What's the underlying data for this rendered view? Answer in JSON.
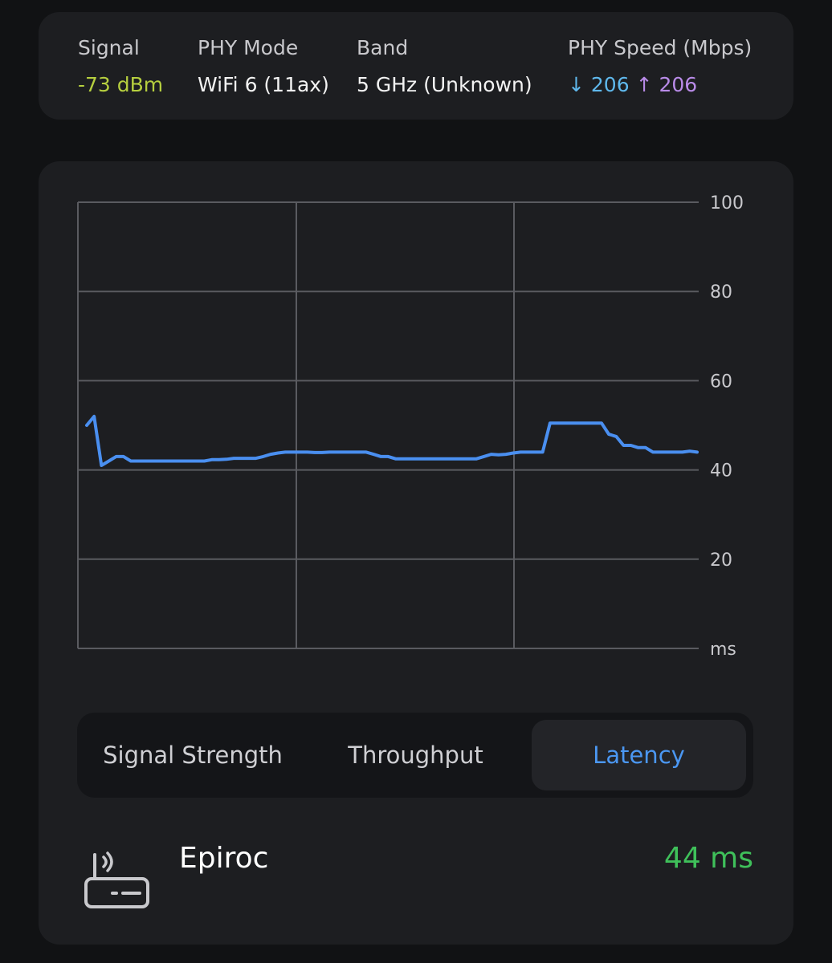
{
  "info": {
    "signal": {
      "label": "Signal",
      "value": "-73 dBm",
      "color": "#b6cf3f"
    },
    "phy_mode": {
      "label": "PHY Mode",
      "value": "WiFi 6 (11ax)"
    },
    "band": {
      "label": "Band",
      "value": "5 GHz (Unknown)"
    },
    "phy_speed": {
      "label": "PHY Speed (Mbps)",
      "down_arrow": "↓",
      "down": "206",
      "up_arrow": "↑",
      "up": "206"
    }
  },
  "chart_data": {
    "type": "line",
    "xlabel": "",
    "ylabel": "ms",
    "ylim": [
      0,
      100
    ],
    "yticks": [
      "ms",
      "20",
      "40",
      "60",
      "80",
      "100"
    ],
    "grid": true,
    "line_color": "#4a8ff0",
    "series": [
      {
        "values": [
          50,
          52,
          41,
          42,
          43,
          43,
          42,
          42,
          42,
          42,
          42,
          42,
          42,
          42,
          42,
          42,
          42,
          42.3,
          42.3,
          42.4,
          42.6,
          42.6,
          42.6,
          42.6,
          43,
          43.5,
          43.8,
          44,
          44,
          44,
          44,
          43.9,
          43.9,
          44,
          44,
          44,
          44,
          44,
          44,
          43.5,
          43,
          43,
          42.5,
          42.5,
          42.5,
          42.5,
          42.5,
          42.5,
          42.5,
          42.5,
          42.5,
          42.5,
          42.5,
          42.5,
          43,
          43.5,
          43.4,
          43.5,
          43.8,
          44,
          44,
          44,
          44,
          50.5,
          50.5,
          50.5,
          50.5,
          50.5,
          50.5,
          50.5,
          50.5,
          48,
          47.5,
          45.5,
          45.5,
          45,
          45,
          44,
          44,
          44,
          44,
          44,
          44.2,
          44
        ]
      }
    ]
  },
  "tabs": [
    {
      "label": "Signal Strength",
      "active": false
    },
    {
      "label": "Throughput",
      "active": false
    },
    {
      "label": "Latency",
      "active": true
    }
  ],
  "network": {
    "name": "Epiroc",
    "latency": "44 ms",
    "icon": "router-icon",
    "latency_color": "#3fc05a"
  }
}
